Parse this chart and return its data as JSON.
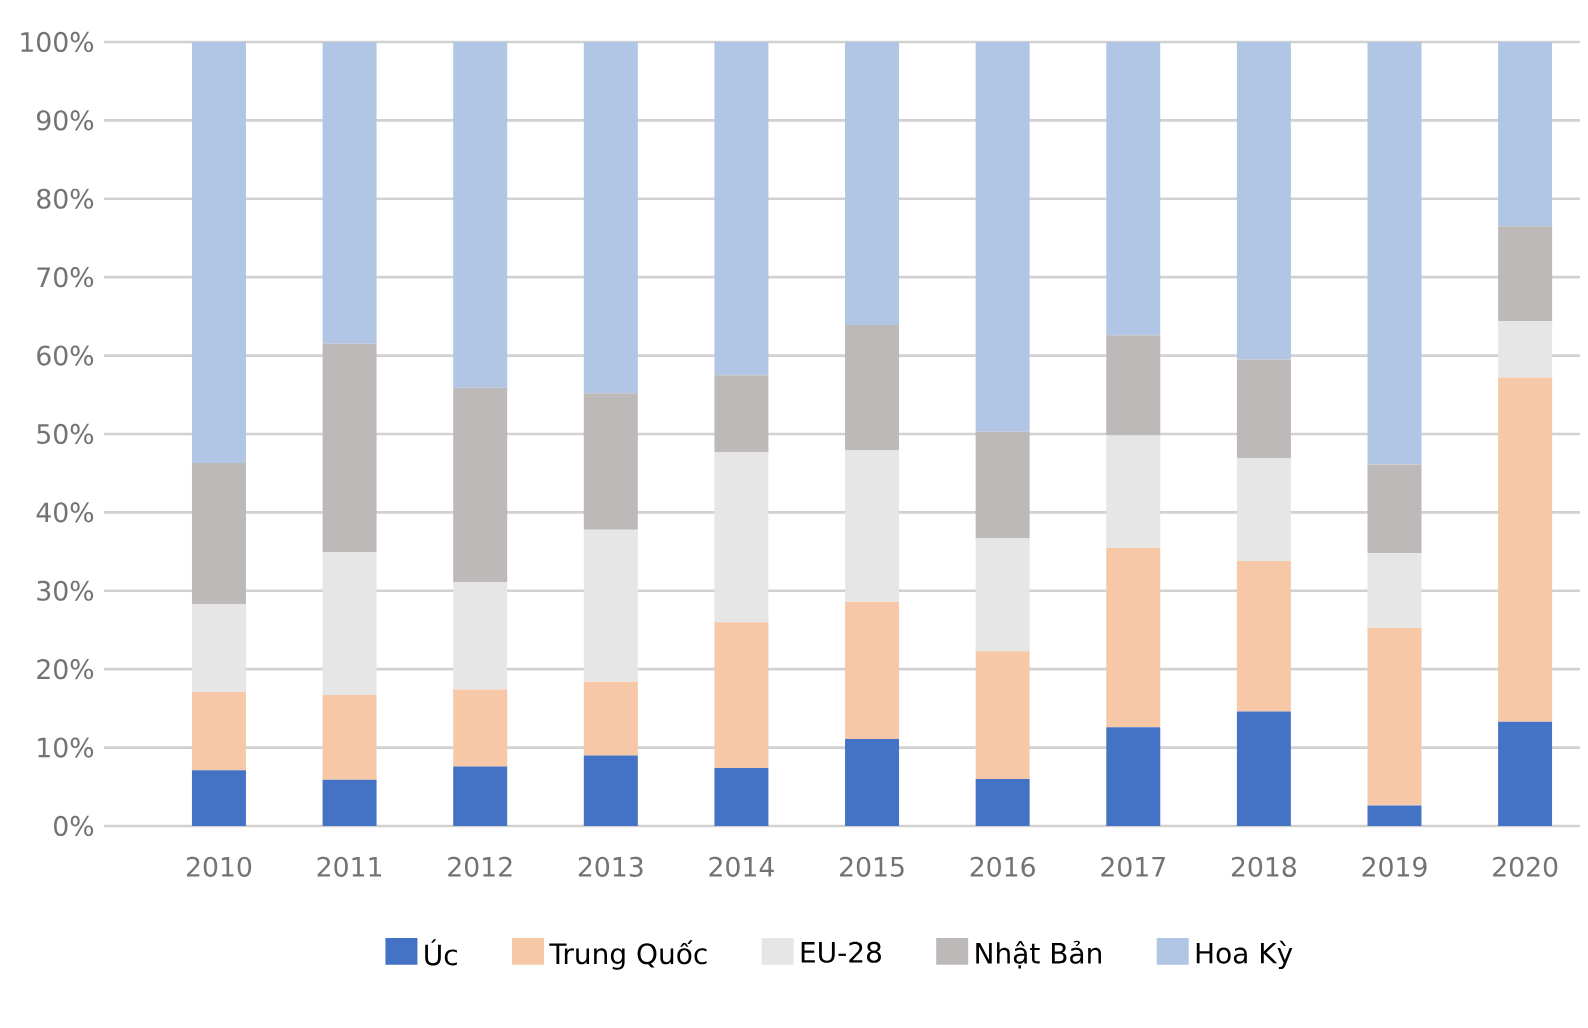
{
  "chart_data": {
    "type": "bar",
    "stacked": true,
    "categories": [
      "2010",
      "2011",
      "2012",
      "2013",
      "2014",
      "2015",
      "2016",
      "2017",
      "2018",
      "2019",
      "2020"
    ],
    "series": [
      {
        "name": "Úc",
        "color": "#4472c4",
        "values": [
          7.1,
          5.9,
          7.6,
          9.0,
          7.4,
          11.1,
          6.0,
          12.6,
          14.6,
          2.6,
          13.3
        ]
      },
      {
        "name": "Trung Quốc",
        "color": "#f6c8a8",
        "values": [
          10.0,
          10.8,
          9.8,
          9.4,
          18.6,
          17.5,
          16.3,
          22.9,
          19.2,
          22.7,
          43.9
        ]
      },
      {
        "name": "EU-28",
        "color": "#e6e6e6",
        "values": [
          11.2,
          18.2,
          13.7,
          19.4,
          21.7,
          19.3,
          14.4,
          14.3,
          13.1,
          9.5,
          7.2
        ]
      },
      {
        "name": "Nhật Bản",
        "color": "#bdb9b8",
        "values": [
          18.0,
          26.6,
          24.8,
          17.4,
          9.8,
          16.0,
          13.6,
          12.8,
          12.6,
          11.3,
          12.1
        ]
      },
      {
        "name": "Hoa Kỳ",
        "color": "#b1c5e5",
        "values": [
          53.7,
          38.5,
          44.1,
          44.8,
          42.5,
          36.1,
          49.7,
          37.4,
          40.5,
          53.9,
          23.5
        ]
      }
    ],
    "ylim": [
      0,
      100
    ],
    "yticks": [
      {
        "value": 0,
        "label": "0%"
      },
      {
        "value": 10,
        "label": "10%"
      },
      {
        "value": 20,
        "label": "20%"
      },
      {
        "value": 30,
        "label": "30%"
      },
      {
        "value": 40,
        "label": "40%"
      },
      {
        "value": 50,
        "label": "50%"
      },
      {
        "value": 60,
        "label": "60%"
      },
      {
        "value": 70,
        "label": "70%"
      },
      {
        "value": 80,
        "label": "80%"
      },
      {
        "value": 90,
        "label": "90%"
      },
      {
        "value": 100,
        "label": "100%"
      }
    ],
    "grid": "y",
    "legend": "bottom"
  }
}
